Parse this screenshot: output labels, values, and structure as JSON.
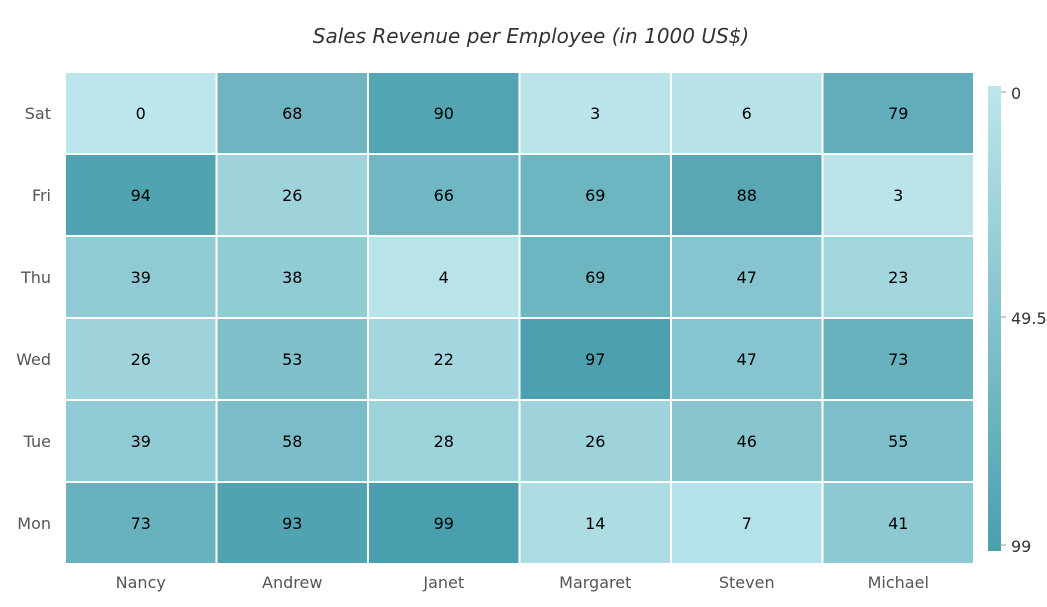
{
  "chart_data": {
    "type": "heatmap",
    "title": "Sales Revenue per Employee (in 1000 US$)",
    "xlabel": "",
    "ylabel": "",
    "x_categories": [
      "Nancy",
      "Andrew",
      "Janet",
      "Margaret",
      "Steven",
      "Michael"
    ],
    "y_categories": [
      "Sat",
      "Fri",
      "Thu",
      "Wed",
      "Tue",
      "Mon"
    ],
    "values": [
      [
        0,
        68,
        90,
        3,
        6,
        79
      ],
      [
        94,
        26,
        66,
        69,
        88,
        3
      ],
      [
        39,
        38,
        4,
        69,
        47,
        23
      ],
      [
        26,
        53,
        22,
        97,
        47,
        73
      ],
      [
        39,
        58,
        28,
        26,
        46,
        55
      ],
      [
        73,
        93,
        99,
        14,
        7,
        41
      ]
    ],
    "color_scale": {
      "min": 0,
      "mid": 49.5,
      "max": 99,
      "min_label": "0",
      "mid_label": "49.5",
      "max_label": "99",
      "min_color": "#bde6ec",
      "max_color": "#4a9fae"
    },
    "legend": "right"
  },
  "colors": {
    "cell_border": "#ffffff",
    "plot_border": "#dadada",
    "text": "#000000",
    "axis_text": "#555555",
    "title_text": "#333333"
  }
}
